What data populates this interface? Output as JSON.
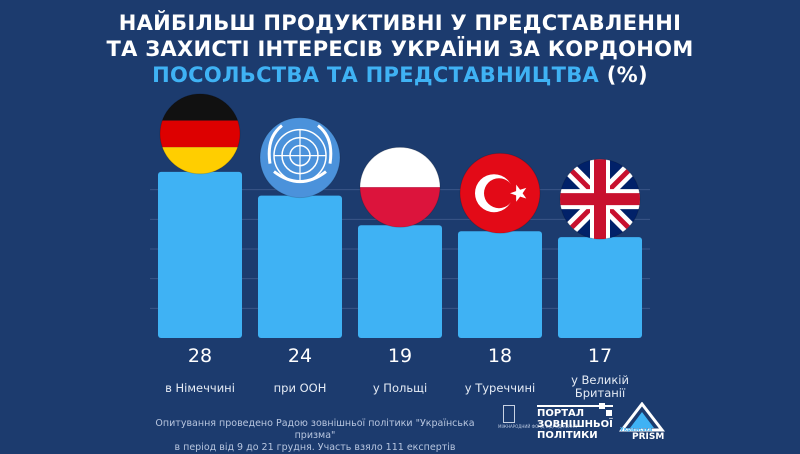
{
  "title": {
    "line1": "НАЙБІЛЬШ ПРОДУКТИВНІ У ПРЕДСТАВЛЕННІ",
    "line2": "ТА ЗАХИСТІ ІНТЕРЕСІВ УКРАЇНИ ЗА КОРДОНОМ",
    "line3_accent": "ПОСОЛЬСТВА ТА ПРЕДСТАВНИЦТВА",
    "line3_unit": " (%)"
  },
  "colors": {
    "background": "#1c3b6e",
    "bar": "#3fb2f4",
    "accent": "#3fb2f4",
    "text": "#ffffff"
  },
  "chart_data": {
    "type": "bar",
    "categories": [
      "в Німеччині",
      "при ООН",
      "у Польщі",
      "у Туреччині",
      "у Великій Британії"
    ],
    "category_lines": [
      [
        "в Німеччині"
      ],
      [
        "при ООН"
      ],
      [
        "у Польщі"
      ],
      [
        "у Туреччині"
      ],
      [
        "у Великій",
        "Британії"
      ]
    ],
    "values": [
      28,
      24,
      19,
      18,
      17
    ],
    "data_labels": [
      "28",
      "24",
      "19",
      "18",
      "17"
    ],
    "icons": [
      "germany-flag-icon",
      "un-emblem-icon",
      "poland-flag-icon",
      "turkey-flag-icon",
      "uk-flag-icon"
    ],
    "ylim": [
      0,
      30
    ],
    "grid": true
  },
  "footnote": {
    "line1": "Опитування проведено Радою зовнішньої політики \"Українська призма\"",
    "line2": "в період від 9 до 21 грудня. Участь взяло 111 експертів"
  },
  "logos": {
    "fund_text": "МІЖНАРОДНИЙ ФОНД ВІДРОДЖЕННЯ",
    "portal_text": "ПОРТАЛ\nЗОВНІШНЬОЇ\nПОЛІТИКИ",
    "prism_small": "Українська",
    "prism_big": "PRISM"
  }
}
